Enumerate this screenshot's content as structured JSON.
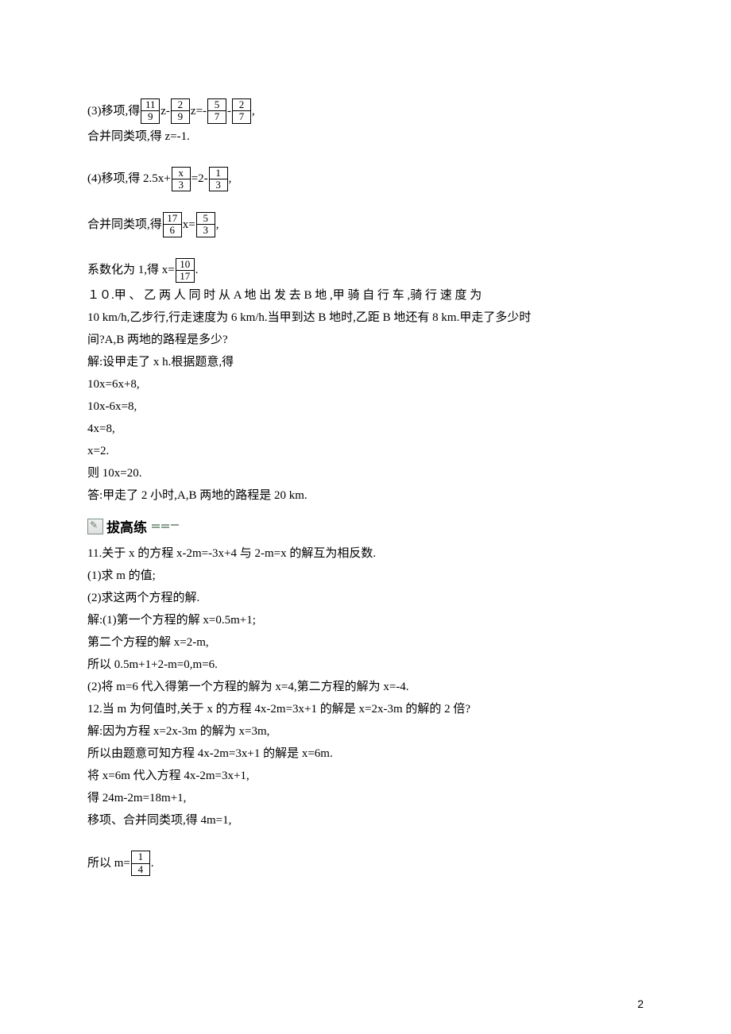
{
  "block1": {
    "prefix": "(3)移项,得",
    "f1n": "11",
    "f1d": "9",
    "mid1": "z-",
    "f2n": "2",
    "f2d": "9",
    "mid2": "z=-",
    "f3n": "5",
    "f3d": "7",
    "mid3": "-",
    "f4n": "2",
    "f4d": "7",
    "suffix": ",",
    "line2": "合并同类项,得 z=-1."
  },
  "block2": {
    "prefix": "(4)移项,得 2.5x+",
    "f1n": "x",
    "f1d": "3",
    "mid1": "=2-",
    "f2n": "1",
    "f2d": "3",
    "suffix": ",",
    "l2prefix": "合并同类项,得",
    "l2f1n": "17",
    "l2f1d": "6",
    "l2mid": "x=",
    "l2f2n": "5",
    "l2f2d": "3",
    "l2suffix": ",",
    "l3prefix": "系数化为 1,得 x=",
    "l3f1n": "10",
    "l3f1d": "17",
    "l3suffix": "."
  },
  "q10": {
    "l1": "１０.甲 、 乙 两 人 同 时 从 A 地 出 发 去 B 地 ,甲 骑 自 行 车 ,骑 行 速 度 为",
    "l2": "10 km/h,乙步行,行走速度为 6 km/h.当甲到达 B 地时,乙距 B 地还有 8 km.甲走了多少时",
    "l3": "间?A,B 两地的路程是多少?",
    "s1": "解:设甲走了 x h.根据题意,得",
    "s2": "10x=6x+8,",
    "s3": "10x-6x=8,",
    "s4": "4x=8,",
    "s5": "x=2.",
    "s6": "则 10x=20.",
    "s7": "答:甲走了 2 小时,A,B 两地的路程是 20 km."
  },
  "banner": {
    "text": "拔高练"
  },
  "q11": {
    "l1": "11.关于 x 的方程 x-2m=-3x+4 与 2-m=x 的解互为相反数.",
    "l2": "(1)求 m 的值;",
    "l3": "(2)求这两个方程的解.",
    "s1": "解:(1)第一个方程的解 x=0.5m+1;",
    "s2": "第二个方程的解 x=2-m,",
    "s3": "所以 0.5m+1+2-m=0,m=6.",
    "s4": "(2)将 m=6 代入得第一个方程的解为 x=4,第二方程的解为 x=-4."
  },
  "q12": {
    "l1": "12.当 m 为何值时,关于 x 的方程 4x-2m=3x+1 的解是 x=2x-3m 的解的 2 倍?",
    "s1": "解:因为方程 x=2x-3m 的解为 x=3m,",
    "s2": "所以由题意可知方程 4x-2m=3x+1 的解是 x=6m.",
    "s3": "将 x=6m 代入方程 4x-2m=3x+1,",
    "s4": "得 24m-2m=18m+1,",
    "s5": "移项、合并同类项,得 4m=1,",
    "s6prefix": "所以 m=",
    "s6fn": "1",
    "s6fd": "4",
    "s6suffix": "."
  },
  "pagenum": "2"
}
